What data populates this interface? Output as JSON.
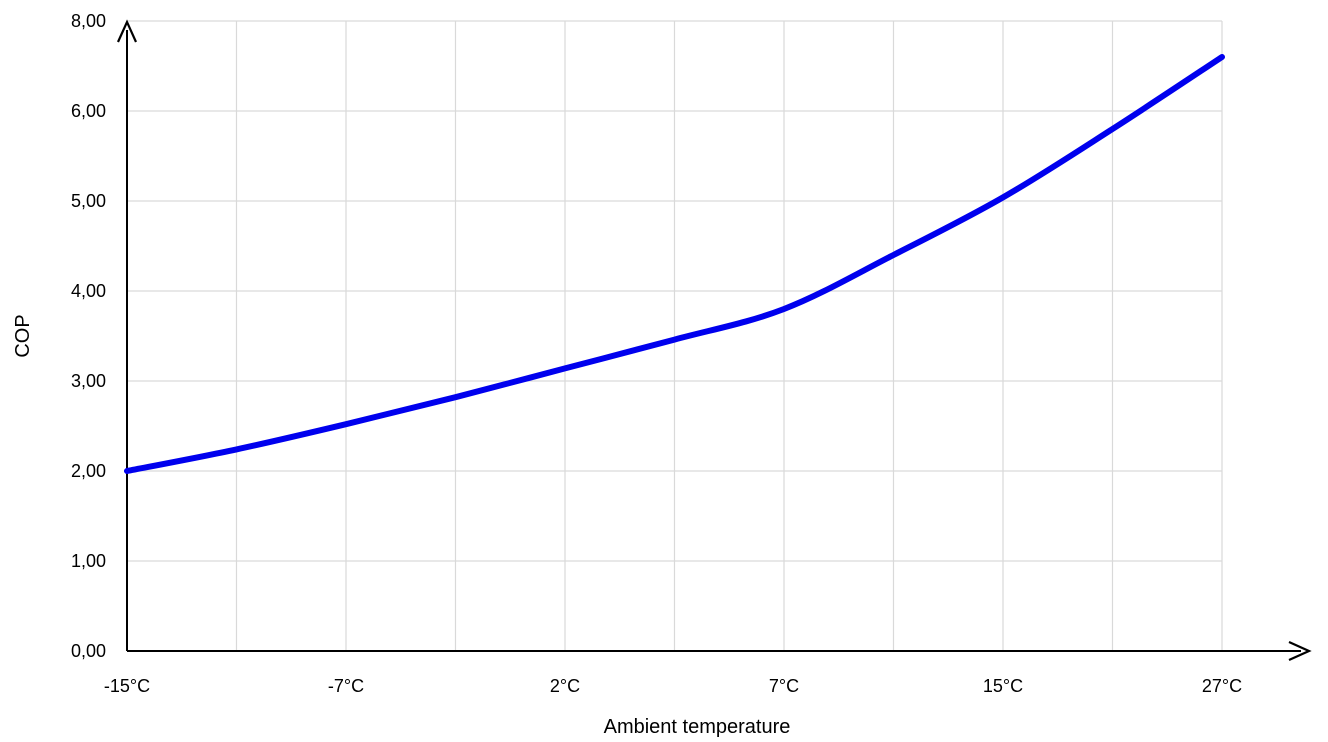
{
  "chart_data": {
    "type": "line",
    "title": "",
    "xlabel": "Ambient temperature",
    "ylabel": "COP",
    "x_tick_labels": [
      "-15°C",
      "-7°C",
      "2°C",
      "7°C",
      "15°C",
      "27°C"
    ],
    "y_tick_labels": [
      "0,00",
      "1,00",
      "2,00",
      "3,00",
      "4,00",
      "5,00",
      "6,00",
      "8,00"
    ],
    "ylim": [
      0,
      7
    ],
    "grid": true,
    "series": [
      {
        "color": "#0000ee",
        "values": [
          2.0,
          2.24,
          2.52,
          2.82,
          3.14,
          3.46,
          3.8,
          4.4,
          5.04,
          5.8,
          6.6
        ]
      }
    ]
  }
}
